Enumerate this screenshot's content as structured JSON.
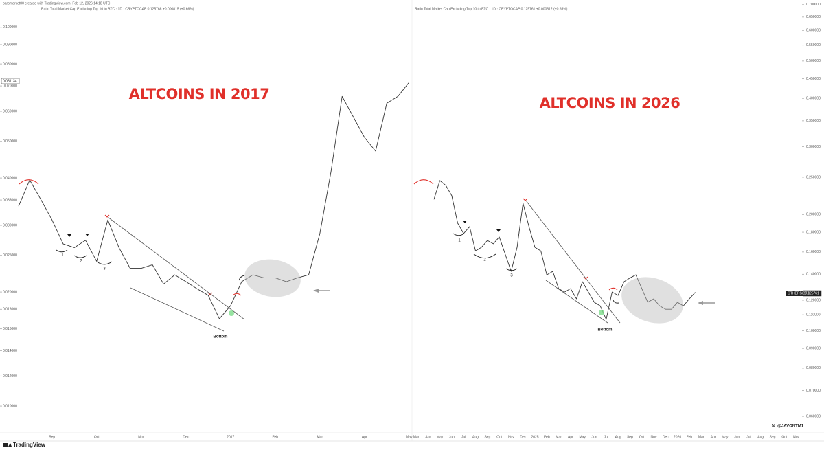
{
  "header": {
    "credit": "paromarket00 created with TradingView.com, Feb 12, 2026 14:18 UTC",
    "brand": "TradingView",
    "watermark": "@JAVONTM1"
  },
  "chart_data": [
    {
      "type": "line",
      "title": "Ratio Total Market Cap Excluding Top 10 to BTC · 1D · CRYPTOCAP  0.125768  +0.000815 (+0.66%)",
      "annotation": "ALTCOINS IN 2017",
      "callouts": [
        "1",
        "2",
        "3",
        "Bottom"
      ],
      "price_tag": "0.081134",
      "categories": [
        null,
        null,
        null,
        "Sep",
        null,
        null,
        null,
        "Oct",
        null,
        null,
        null,
        "Nov",
        null,
        null,
        null,
        "Dec",
        null,
        null,
        null,
        "2017",
        null,
        null,
        null,
        "Feb",
        null,
        null,
        null,
        "Mar",
        null,
        null,
        null,
        "Apr",
        null,
        null,
        null,
        "May"
      ],
      "values": [
        0.0337,
        0.0395,
        0.0351,
        0.031,
        0.0268,
        0.0262,
        0.0274,
        0.0241,
        0.031,
        0.0262,
        0.0231,
        0.0231,
        0.0236,
        0.021,
        0.0222,
        0.0213,
        0.0204,
        0.0196,
        0.017,
        0.0184,
        0.0213,
        0.0222,
        0.0218,
        0.0218,
        0.0213,
        0.0218,
        0.0222,
        0.0285,
        0.0415,
        0.0657,
        0.058,
        0.0512,
        0.0471,
        0.063,
        0.0657,
        0.0715
      ],
      "color": "#333333",
      "log_scale": true,
      "axis_side": "left",
      "ylim": [
        0.0085,
        0.1156
      ],
      "yticks": [
        {
          "value": 0.01,
          "label": "0.010000"
        },
        {
          "value": 0.012,
          "label": "0.012000"
        },
        {
          "value": 0.014,
          "label": "0.014000"
        },
        {
          "value": 0.016,
          "label": "0.016000"
        },
        {
          "value": 0.018,
          "label": "0.018000"
        },
        {
          "value": 0.02,
          "label": "0.020000"
        },
        {
          "value": 0.025,
          "label": "0.025000"
        },
        {
          "value": 0.03,
          "label": "0.030000"
        },
        {
          "value": 0.035,
          "label": "0.035000"
        },
        {
          "value": 0.04,
          "label": "0.040000"
        },
        {
          "value": 0.05,
          "label": "0.050000"
        },
        {
          "value": 0.06,
          "label": "0.060000"
        },
        {
          "value": 0.07,
          "label": "0.070000"
        },
        {
          "value": 0.08,
          "label": "0.080000"
        },
        {
          "value": 0.09,
          "label": "0.090000"
        },
        {
          "value": 0.1,
          "label": "0.100000"
        }
      ],
      "grid": false
    },
    {
      "type": "line",
      "title": "Ratio Total Market Cap Excluding Top 10 to BTC · 1D · CRYPTOCAP  0.125761  +0.000812 (+0.65%)",
      "annotation": "ALTCOINS IN 2026",
      "callouts": [
        "1",
        "2",
        "3",
        "Bottom"
      ],
      "price_tag": "0.125761",
      "symbol_tag": "OTHERS/BTC",
      "categories": [
        "Mar",
        null,
        "Apr",
        null,
        "May",
        null,
        "Jun",
        null,
        "Jul",
        null,
        "Aug",
        null,
        "Sep",
        null,
        "Oct",
        null,
        "Nov",
        null,
        "Dec",
        null,
        "2025",
        null,
        "Feb",
        null,
        "Mar",
        null,
        "Apr",
        null,
        "May",
        null,
        "Jun",
        null,
        "Jul",
        null,
        "Aug",
        null,
        "Sep",
        null,
        "Oct",
        null,
        "Nov",
        null,
        "Dec",
        null,
        "2026",
        null,
        "Feb",
        null,
        "Mar",
        null,
        "Apr",
        null,
        "May",
        null,
        "Jun",
        null,
        "Jul",
        null,
        "Aug",
        null,
        "Sep",
        null,
        "Oct",
        null,
        "Nov"
      ],
      "values": [
        null,
        null,
        null,
        0.219,
        0.245,
        0.238,
        0.224,
        0.19,
        0.1786,
        0.1861,
        0.161,
        0.1645,
        0.1714,
        0.168,
        0.175,
        0.1579,
        0.1425,
        0.1645,
        0.214,
        0.1861,
        0.1645,
        0.161,
        0.1396,
        0.1425,
        0.1286,
        0.126,
        0.1286,
        0.121,
        0.134,
        0.126,
        0.1185,
        0.116,
        0.107,
        0.126,
        0.1235,
        0.134,
        0.137,
        0.1396,
        0.1286,
        0.1185,
        0.121,
        0.116,
        0.1137,
        0.1137,
        0.1185,
        0.116,
        0.121,
        0.125761,
        null,
        null,
        null,
        null,
        null,
        null,
        null,
        null,
        null,
        null,
        null,
        null,
        null,
        null,
        null,
        null,
        null
      ],
      "color": "#333333",
      "log_scale": true,
      "axis_side": "right",
      "ylim": [
        0.0544,
        0.705
      ],
      "yticks": [
        {
          "value": 0.06,
          "label": "0.060000"
        },
        {
          "value": 0.07,
          "label": "0.070000"
        },
        {
          "value": 0.08,
          "label": "0.080000"
        },
        {
          "value": 0.09,
          "label": "0.090000"
        },
        {
          "value": 0.1,
          "label": "0.100000"
        },
        {
          "value": 0.11,
          "label": "0.110000"
        },
        {
          "value": 0.12,
          "label": "0.120000"
        },
        {
          "value": 0.14,
          "label": "0.140000"
        },
        {
          "value": 0.16,
          "label": "0.160000"
        },
        {
          "value": 0.18,
          "label": "0.180000"
        },
        {
          "value": 0.2,
          "label": "0.200000"
        },
        {
          "value": 0.25,
          "label": "0.250000"
        },
        {
          "value": 0.3,
          "label": "0.300000"
        },
        {
          "value": 0.35,
          "label": "0.350000"
        },
        {
          "value": 0.4,
          "label": "0.400000"
        },
        {
          "value": 0.45,
          "label": "0.450000"
        },
        {
          "value": 0.5,
          "label": "0.500000"
        },
        {
          "value": 0.55,
          "label": "0.550000"
        },
        {
          "value": 0.6,
          "label": "0.600000"
        },
        {
          "value": 0.65,
          "label": "0.650000"
        },
        {
          "value": 0.7,
          "label": "0.700000"
        }
      ],
      "grid": false
    }
  ]
}
